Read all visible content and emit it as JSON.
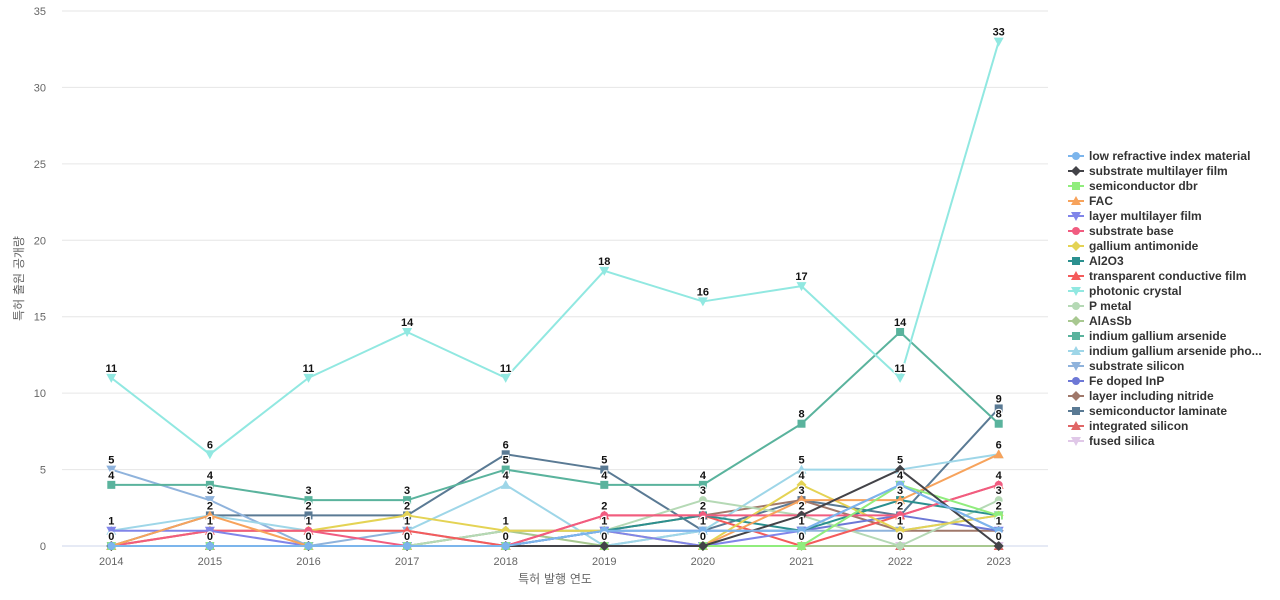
{
  "chart_data": {
    "type": "line",
    "title": "",
    "xlabel": "특허 발행 연도",
    "ylabel": "특허 출원 공개량",
    "x": [
      "2014",
      "2015",
      "2016",
      "2017",
      "2018",
      "2019",
      "2020",
      "2021",
      "2022",
      "2023"
    ],
    "ylim": [
      0,
      35
    ],
    "yticks": [
      0,
      5,
      10,
      15,
      20,
      25,
      30,
      35
    ],
    "grid": true,
    "legend_position": "right",
    "series": [
      {
        "name": "low refractive index material",
        "color": "#7cb5ec",
        "marker": "circle",
        "values": [
          0,
          0,
          0,
          0,
          0,
          1,
          1,
          1,
          4,
          1
        ]
      },
      {
        "name": "substrate multilayer film",
        "color": "#434348",
        "marker": "diamond",
        "values": [
          0,
          0,
          0,
          0,
          0,
          0,
          0,
          2,
          5,
          0
        ]
      },
      {
        "name": "semiconductor dbr",
        "color": "#90ed7d",
        "marker": "square",
        "values": [
          0,
          0,
          0,
          0,
          0,
          0,
          0,
          0,
          4,
          2
        ]
      },
      {
        "name": "FAC",
        "color": "#f7a35c",
        "marker": "triangle",
        "values": [
          0,
          2,
          0,
          0,
          0,
          0,
          0,
          3,
          3,
          6
        ]
      },
      {
        "name": "layer multilayer film",
        "color": "#8085e9",
        "marker": "triangle-down",
        "values": [
          1,
          1,
          0,
          0,
          0,
          1,
          0,
          1,
          4,
          1
        ]
      },
      {
        "name": "substrate base",
        "color": "#f15c80",
        "marker": "circle",
        "values": [
          0,
          1,
          1,
          0,
          0,
          2,
          2,
          2,
          2,
          4
        ]
      },
      {
        "name": "gallium antimonide",
        "color": "#e4d354",
        "marker": "diamond",
        "values": [
          0,
          1,
          1,
          2,
          1,
          1,
          0,
          4,
          1,
          2
        ]
      },
      {
        "name": "Al2O3",
        "color": "#2b908f",
        "marker": "square",
        "values": [
          0,
          0,
          0,
          0,
          0,
          1,
          2,
          1,
          3,
          2
        ]
      },
      {
        "name": "transparent conductive film",
        "color": "#f45b5b",
        "marker": "triangle",
        "values": [
          0,
          1,
          1,
          1,
          0,
          2,
          2,
          0,
          2,
          4
        ]
      },
      {
        "name": "photonic crystal",
        "color": "#91e8e1",
        "marker": "triangle-down",
        "values": [
          11,
          6,
          11,
          14,
          11,
          18,
          16,
          17,
          11,
          33
        ]
      },
      {
        "name": "P metal",
        "color": "#b5d9b5",
        "marker": "circle",
        "values": [
          0,
          0,
          0,
          0,
          1,
          1,
          3,
          2,
          0,
          3
        ]
      },
      {
        "name": "AlAsSb",
        "color": "#a8c890",
        "marker": "diamond",
        "values": [
          0,
          0,
          0,
          0,
          1,
          0,
          0,
          0,
          0,
          0
        ]
      },
      {
        "name": "indium gallium arsenide",
        "color": "#5ab39d",
        "marker": "square",
        "values": [
          4,
          4,
          3,
          3,
          5,
          4,
          4,
          8,
          14,
          8
        ]
      },
      {
        "name": "indium gallium arsenide pho...",
        "color": "#9ed6e8",
        "marker": "triangle",
        "values": [
          1,
          2,
          1,
          1,
          4,
          0,
          1,
          5,
          5,
          6
        ]
      },
      {
        "name": "substrate silicon",
        "color": "#8fb3dc",
        "marker": "triangle-down",
        "values": [
          5,
          3,
          0,
          1,
          0,
          0,
          1,
          1,
          1,
          2
        ]
      },
      {
        "name": "Fe doped InP",
        "color": "#6d78d6",
        "marker": "circle",
        "values": [
          0,
          0,
          0,
          0,
          0,
          1,
          1,
          1,
          2,
          1
        ]
      },
      {
        "name": "layer including nitride",
        "color": "#a0786a",
        "marker": "diamond",
        "values": [
          0,
          0,
          0,
          0,
          1,
          1,
          2,
          3,
          1,
          1
        ]
      },
      {
        "name": "semiconductor laminate",
        "color": "#5a7a94",
        "marker": "square",
        "values": [
          0,
          2,
          2,
          2,
          6,
          5,
          1,
          3,
          2,
          9
        ]
      },
      {
        "name": "integrated silicon",
        "color": "#e06666",
        "marker": "triangle",
        "values": [
          0,
          0,
          0,
          0,
          0,
          0,
          0,
          0,
          0,
          0
        ]
      },
      {
        "name": "fused silica",
        "color": "#e0c8e8",
        "marker": "triangle-down",
        "values": [
          0,
          0,
          0,
          0,
          0,
          0,
          0,
          0,
          0,
          0
        ]
      }
    ],
    "data_labels": [
      {
        "x": "2014",
        "values": [
          11,
          5,
          4,
          1,
          0
        ]
      },
      {
        "x": "2015",
        "values": [
          6,
          4,
          3,
          2,
          1,
          0
        ]
      },
      {
        "x": "2016",
        "values": [
          11,
          3,
          2,
          1,
          0
        ]
      },
      {
        "x": "2017",
        "values": [
          14,
          3,
          2,
          1,
          0
        ]
      },
      {
        "x": "2018",
        "values": [
          11,
          6,
          5,
          4,
          1,
          0
        ]
      },
      {
        "x": "2019",
        "values": [
          18,
          5,
          4,
          2,
          1,
          0
        ]
      },
      {
        "x": "2020",
        "values": [
          16,
          4,
          3,
          2,
          1,
          0
        ]
      },
      {
        "x": "2021",
        "values": [
          17,
          8,
          5,
          4,
          3,
          2,
          1,
          0
        ]
      },
      {
        "x": "2022",
        "values": [
          14,
          11,
          5,
          4,
          3,
          2,
          1,
          0
        ]
      },
      {
        "x": "2023",
        "values": [
          33,
          9,
          8,
          6,
          4,
          3,
          2,
          1,
          0
        ]
      }
    ]
  }
}
